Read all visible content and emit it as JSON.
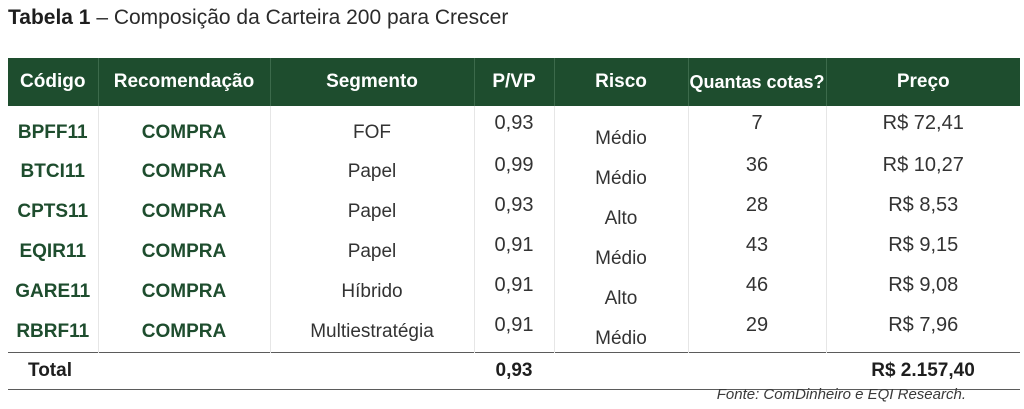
{
  "title": {
    "bold": "Tabela 1",
    "rest": " – Composição da Carteira 200 para Crescer"
  },
  "table": {
    "headers": [
      "Código",
      "Recomendação",
      "Segmento",
      "P/VP",
      "Risco",
      "Quantas cotas?",
      "Preço"
    ],
    "rows": [
      {
        "codigo": "BPFF11",
        "recomendacao": "COMPRA",
        "segmento": "FOF",
        "pvp": "0,93",
        "risco": "Médio",
        "cotas": "7",
        "preco": "R$ 72,41"
      },
      {
        "codigo": "BTCI11",
        "recomendacao": "COMPRA",
        "segmento": "Papel",
        "pvp": "0,99",
        "risco": "Médio",
        "cotas": "36",
        "preco": "R$ 10,27"
      },
      {
        "codigo": "CPTS11",
        "recomendacao": "COMPRA",
        "segmento": "Papel",
        "pvp": "0,93",
        "risco": "Alto",
        "cotas": "28",
        "preco": "R$ 8,53"
      },
      {
        "codigo": "EQIR11",
        "recomendacao": "COMPRA",
        "segmento": "Papel",
        "pvp": "0,91",
        "risco": "Médio",
        "cotas": "43",
        "preco": "R$ 9,15"
      },
      {
        "codigo": "GARE11",
        "recomendacao": "COMPRA",
        "segmento": "Híbrido",
        "pvp": "0,91",
        "risco": "Alto",
        "cotas": "46",
        "preco": "R$ 9,08"
      },
      {
        "codigo": "RBRF11",
        "recomendacao": "COMPRA",
        "segmento": "Multiestratégia",
        "pvp": "0,91",
        "risco": "Médio",
        "cotas": "29",
        "preco": "R$ 7,96"
      }
    ],
    "total": {
      "label": "Total",
      "pvp": "0,93",
      "preco": "R$ 2.157,40"
    }
  },
  "source": "Fonte: ComDinheiro e EQI Research.",
  "colors": {
    "header_bg": "#1e4d2e",
    "header_text": "#ffffff",
    "accent_text": "#1e4d2e"
  }
}
